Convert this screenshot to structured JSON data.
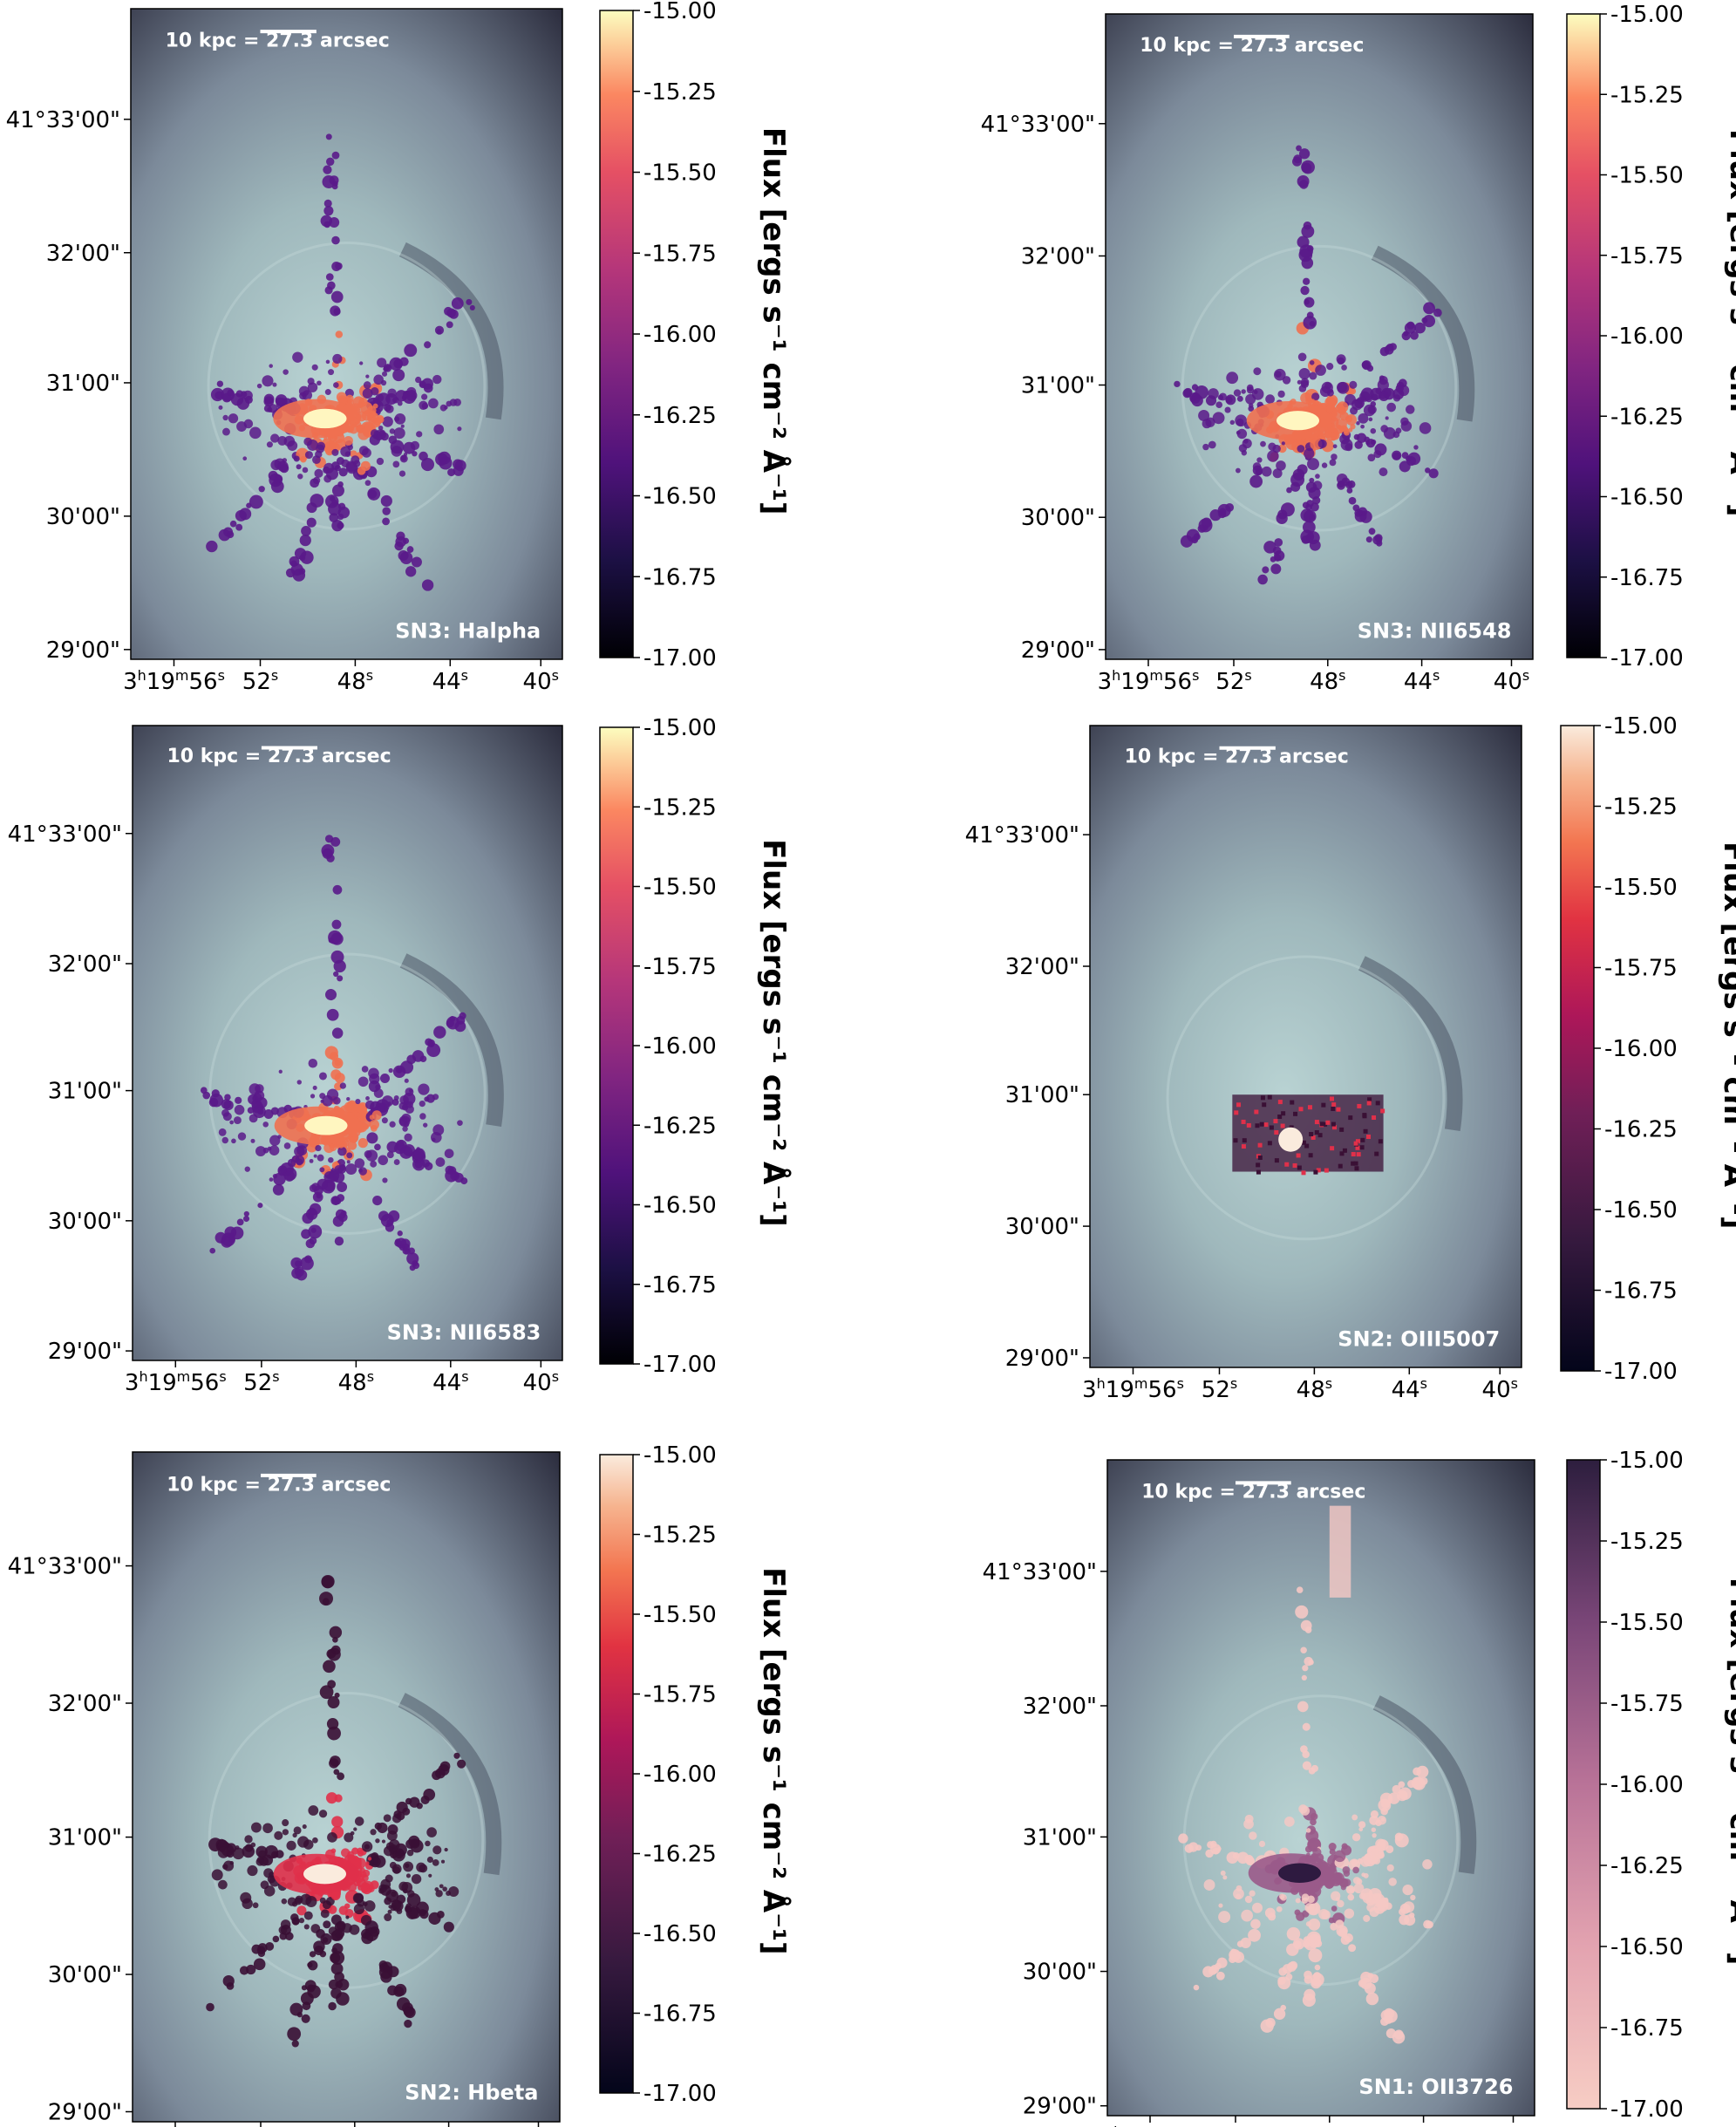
{
  "figure": {
    "scale_bar_label": "10 kpc = 27.3 arcsec",
    "colorbar_label": "Flux [ergs s⁻¹ cm⁻² Å⁻¹]",
    "colorbar_ticks": [
      "-15.00",
      "-15.25",
      "-15.50",
      "-15.75",
      "-16.00",
      "-16.25",
      "-16.50",
      "-16.75",
      "-17.00"
    ],
    "dec_ticks": [
      "41°33'00\"",
      "32'00\"",
      "31'00\"",
      "30'00\"",
      "29'00\""
    ],
    "ra_ticks": [
      {
        "main": "3",
        "sup1": "h",
        "mid": "19",
        "sup2": "m",
        "end": "56",
        "sup3": "s"
      },
      {
        "main": "52",
        "sup3": "s"
      },
      {
        "main": "48",
        "sup3": "s"
      },
      {
        "main": "44",
        "sup3": "s"
      },
      {
        "main": "40",
        "sup3": "s"
      }
    ]
  },
  "panels": [
    {
      "label": "SN3: Halpha",
      "cmap": "magma",
      "hot": "#fff6c0",
      "mid": "#f07050",
      "low": "#5a1a8a"
    },
    {
      "label": "SN3: NII6548",
      "cmap": "magma",
      "hot": "#fff6c0",
      "mid": "#f07050",
      "low": "#5a1a8a"
    },
    {
      "label": "SN3: NII6583",
      "cmap": "magma",
      "hot": "#fff6c0",
      "mid": "#f07050",
      "low": "#5a1a8a"
    },
    {
      "label": "SN2: OIII5007",
      "cmap": "rocket",
      "hot": "#faebdd",
      "mid": "#e0304a",
      "low": "#3a1035"
    },
    {
      "label": "SN2: Hbeta",
      "cmap": "rocket",
      "hot": "#faebdd",
      "mid": "#e0304a",
      "low": "#3a1035"
    },
    {
      "label": "SN1: OII3726",
      "cmap": "rdpu_r",
      "hot": "#2e1a40",
      "mid": "#9a5a8a",
      "low": "#f5c8c4"
    }
  ]
}
